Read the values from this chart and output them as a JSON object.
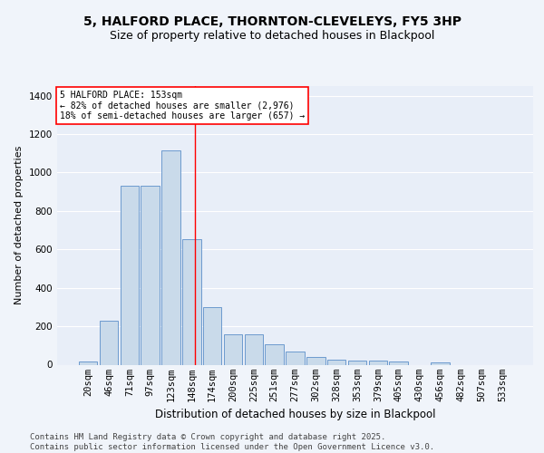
{
  "title_line1": "5, HALFORD PLACE, THORNTON-CLEVELEYS, FY5 3HP",
  "title_line2": "Size of property relative to detached houses in Blackpool",
  "xlabel": "Distribution of detached houses by size in Blackpool",
  "ylabel": "Number of detached properties",
  "categories": [
    "20sqm",
    "46sqm",
    "71sqm",
    "97sqm",
    "123sqm",
    "148sqm",
    "174sqm",
    "200sqm",
    "225sqm",
    "251sqm",
    "277sqm",
    "302sqm",
    "328sqm",
    "353sqm",
    "379sqm",
    "405sqm",
    "430sqm",
    "456sqm",
    "482sqm",
    "507sqm",
    "533sqm"
  ],
  "bar_values": [
    15,
    230,
    930,
    930,
    1115,
    655,
    300,
    160,
    160,
    105,
    70,
    40,
    25,
    20,
    20,
    15,
    0,
    10,
    0,
    0,
    0
  ],
  "bar_color": "#c9daea",
  "bar_edge_color": "#5b8fc9",
  "annotation_text": "5 HALFORD PLACE: 153sqm\n← 82% of detached houses are smaller (2,976)\n18% of semi-detached houses are larger (657) →",
  "vline_color": "red",
  "ylim": [
    0,
    1450
  ],
  "yticks": [
    0,
    200,
    400,
    600,
    800,
    1000,
    1200,
    1400
  ],
  "footer_text": "Contains HM Land Registry data © Crown copyright and database right 2025.\nContains public sector information licensed under the Open Government Licence v3.0.",
  "bg_color": "#e8eef8",
  "plot_bg_color": "#e8eef8",
  "fig_bg_color": "#f0f4fa",
  "grid_color": "#ffffff",
  "title_fontsize": 10,
  "subtitle_fontsize": 9,
  "axis_label_fontsize": 8,
  "tick_fontsize": 7.5,
  "footer_fontsize": 6.5
}
